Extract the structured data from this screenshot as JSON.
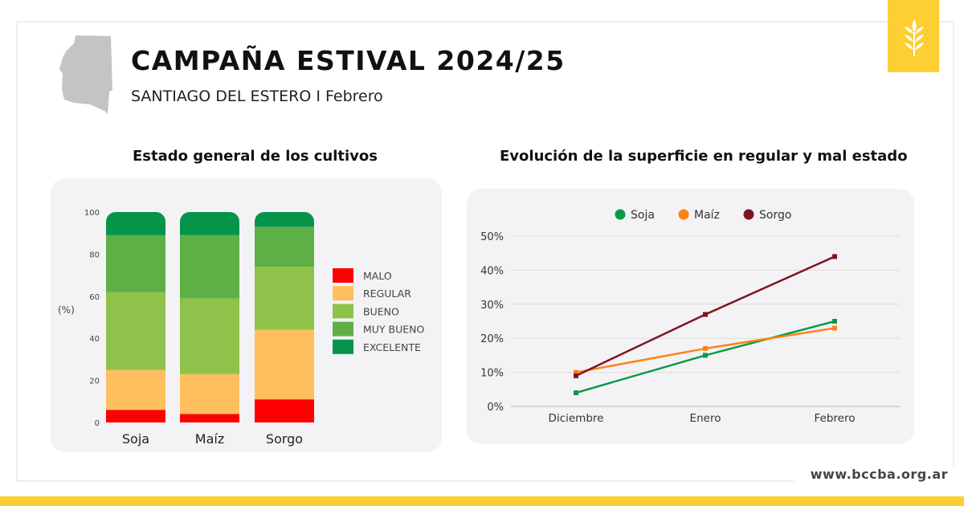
{
  "header": {
    "title": "CAMPAÑA ESTIVAL 2024/25",
    "subtitle": "SANTIAGO DEL ESTERO I Febrero"
  },
  "footer": {
    "url": "www.bccba.org.ar"
  },
  "icons": {
    "logo": "wheat-icon",
    "map": "province-map-silhouette"
  },
  "colors": {
    "accent": "#fecf33",
    "panel": "#f3f3f5"
  },
  "chart_data": [
    {
      "type": "bar",
      "stacked": true,
      "title": "Estado general de los cultivos",
      "ylabel": "(%)",
      "ylim": [
        0,
        100
      ],
      "yticks": [
        0,
        20,
        40,
        60,
        80,
        100
      ],
      "categories": [
        "Soja",
        "Maíz",
        "Sorgo"
      ],
      "legend_position": "right",
      "series": [
        {
          "name": "MALO",
          "color": "#ff0000",
          "values": [
            6,
            4,
            11
          ]
        },
        {
          "name": "REGULAR",
          "color": "#ffbf5f",
          "values": [
            19,
            19,
            33
          ]
        },
        {
          "name": "BUENO",
          "color": "#8fc24a",
          "values": [
            37,
            36,
            30
          ]
        },
        {
          "name": "MUY BUENO",
          "color": "#5eb046",
          "values": [
            27,
            30,
            19
          ]
        },
        {
          "name": "EXCELENTE",
          "color": "#06944b",
          "values": [
            11,
            11,
            7
          ]
        }
      ]
    },
    {
      "type": "line",
      "title": "Evolución de la superficie en regular y mal estado",
      "categories": [
        "Diciembre",
        "Enero",
        "Febrero"
      ],
      "ylim": [
        0,
        50
      ],
      "yticks": [
        "0%",
        "10%",
        "20%",
        "30%",
        "40%",
        "50%"
      ],
      "grid": true,
      "legend_position": "top",
      "series": [
        {
          "name": "Soja",
          "color": "#0a9a4a",
          "values": [
            4,
            15,
            25
          ]
        },
        {
          "name": "Maíz",
          "color": "#ff8214",
          "values": [
            10,
            17,
            23
          ]
        },
        {
          "name": "Sorgo",
          "color": "#7f1520",
          "values": [
            9,
            27,
            44
          ]
        }
      ]
    }
  ]
}
